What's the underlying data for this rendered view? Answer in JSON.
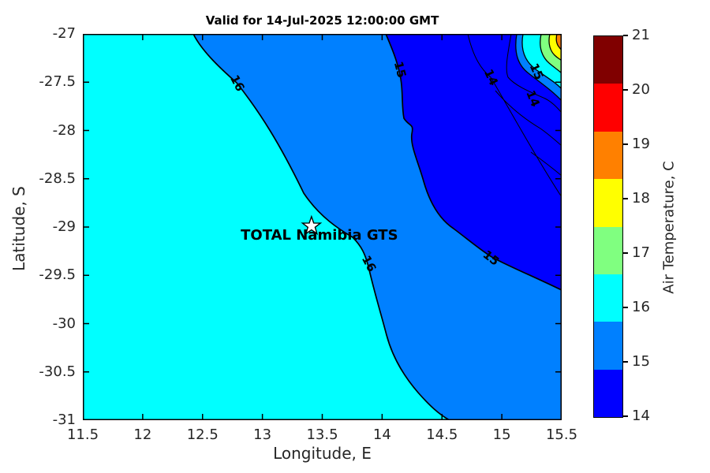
{
  "title": "Valid for 14-Jul-2025 12:00:00 GMT",
  "chart_data": {
    "type": "filled_contour_map",
    "title": "Valid for 14-Jul-2025 12:00:00 GMT",
    "xlabel": "Longitude, E",
    "ylabel": "Latitude, S",
    "xlim": [
      11.5,
      15.5
    ],
    "ylim": [
      -31,
      -27
    ],
    "xticks": [
      11.5,
      12,
      12.5,
      13,
      13.5,
      14,
      14.5,
      15,
      15.5
    ],
    "yticks": [
      -27,
      -27.5,
      -28,
      -28.5,
      -29,
      -29.5,
      -30,
      -30.5,
      -31
    ],
    "grid": false,
    "colorbar": {
      "label": "Air Temperature, C",
      "min": 14,
      "max": 21,
      "ticks": [
        14,
        15,
        16,
        17,
        18,
        19,
        20,
        21
      ],
      "colors": [
        "#0000FF",
        "#0080FF",
        "#00FFFF",
        "#80FF80",
        "#FFFF00",
        "#FF8000",
        "#FF0000",
        "#800000"
      ],
      "position": "right"
    },
    "contour_levels_shown": [
      14,
      15,
      16,
      17,
      18,
      19
    ],
    "filled_bands": [
      {
        "range": "16-17 C",
        "color": "#00FFFF",
        "area": "large western/offshore region"
      },
      {
        "range": "15-16 C",
        "color": "#0080FF",
        "area": "central coastal band and lower-right corner"
      },
      {
        "range": "14-15 C",
        "color": "#0000FF",
        "area": "upper-right inland region"
      },
      {
        "range": "16-19 C",
        "color": "#00FFFF,#80FF80,#FFFF00,#FF8000",
        "area": "thin warm stripes in extreme top-right corner"
      }
    ],
    "contour_labels": [
      {
        "value": "16",
        "lon": 12.79,
        "lat": -27.51,
        "rot": 62
      },
      {
        "value": "16",
        "lon": 13.89,
        "lat": -29.38,
        "rot": 62
      },
      {
        "value": "15",
        "lon": 14.15,
        "lat": -27.37,
        "rot": 75
      },
      {
        "value": "15",
        "lon": 14.91,
        "lat": -29.32,
        "rot": 38
      },
      {
        "value": "14",
        "lon": 14.91,
        "lat": -27.45,
        "rot": 65
      },
      {
        "value": "15",
        "lon": 15.29,
        "lat": -27.39,
        "rot": 65
      },
      {
        "value": "14",
        "lon": 15.26,
        "lat": -27.67,
        "rot": 68
      }
    ],
    "station": {
      "label": "TOTAL Namibia GTS",
      "marker": "star",
      "lon": 13.41,
      "lat": -28.99
    }
  }
}
